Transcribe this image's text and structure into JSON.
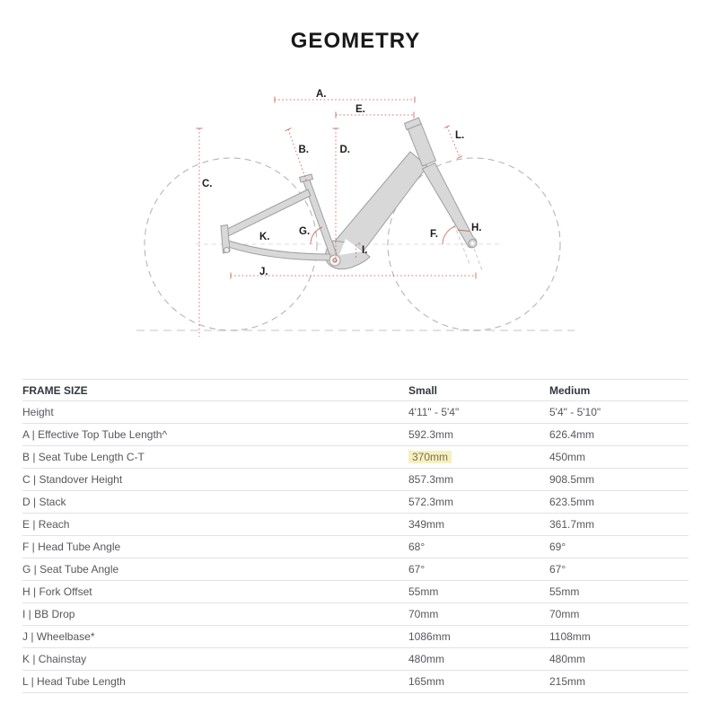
{
  "title": "GEOMETRY",
  "colors": {
    "accent": "#c4574b",
    "frame_fill": "#d8d8d8",
    "frame_stroke": "#9e9e9e",
    "wheel": "#b6b6b6",
    "border": "#e2e2e2",
    "text": "#55575c",
    "header_text": "#33373d",
    "highlight_bg": "#f6f0c0",
    "highlight_text": "#79714e"
  },
  "diagram": {
    "labels": {
      "A": "A.",
      "B": "B.",
      "C": "C.",
      "D": "D.",
      "E": "E.",
      "F": "F.",
      "G": "G.",
      "H": "H.",
      "I": "I.",
      "J": "J.",
      "K": "K.",
      "L": "L."
    }
  },
  "table": {
    "header": {
      "frame_size": "FRAME SIZE",
      "small": "Small",
      "medium": "Medium"
    },
    "rows": [
      {
        "label": "Height",
        "small": "4'11\" - 5'4\"",
        "medium": "5'4\" - 5'10\"",
        "highlight": null
      },
      {
        "label": "A | Effective Top Tube Length^",
        "small": "592.3mm",
        "medium": "626.4mm",
        "highlight": null
      },
      {
        "label": "B | Seat Tube Length C-T",
        "small": "370mm",
        "medium": "450mm",
        "highlight": "small"
      },
      {
        "label": "C | Standover Height",
        "small": "857.3mm",
        "medium": "908.5mm",
        "highlight": null
      },
      {
        "label": "D | Stack",
        "small": "572.3mm",
        "medium": "623.5mm",
        "highlight": null
      },
      {
        "label": "E | Reach",
        "small": "349mm",
        "medium": "361.7mm",
        "highlight": null
      },
      {
        "label": "F | Head Tube Angle",
        "small": "68°",
        "medium": "69°",
        "highlight": null
      },
      {
        "label": "G | Seat Tube Angle",
        "small": "67°",
        "medium": "67°",
        "highlight": null
      },
      {
        "label": "H | Fork Offset",
        "small": "55mm",
        "medium": "55mm",
        "highlight": null
      },
      {
        "label": "I | BB Drop",
        "small": "70mm",
        "medium": "70mm",
        "highlight": null
      },
      {
        "label": "J | Wheelbase*",
        "small": "1086mm",
        "medium": "1108mm",
        "highlight": null
      },
      {
        "label": "K | Chainstay",
        "small": "480mm",
        "medium": "480mm",
        "highlight": null
      },
      {
        "label": "L | Head Tube Length",
        "small": "165mm",
        "medium": "215mm",
        "highlight": null
      }
    ]
  }
}
